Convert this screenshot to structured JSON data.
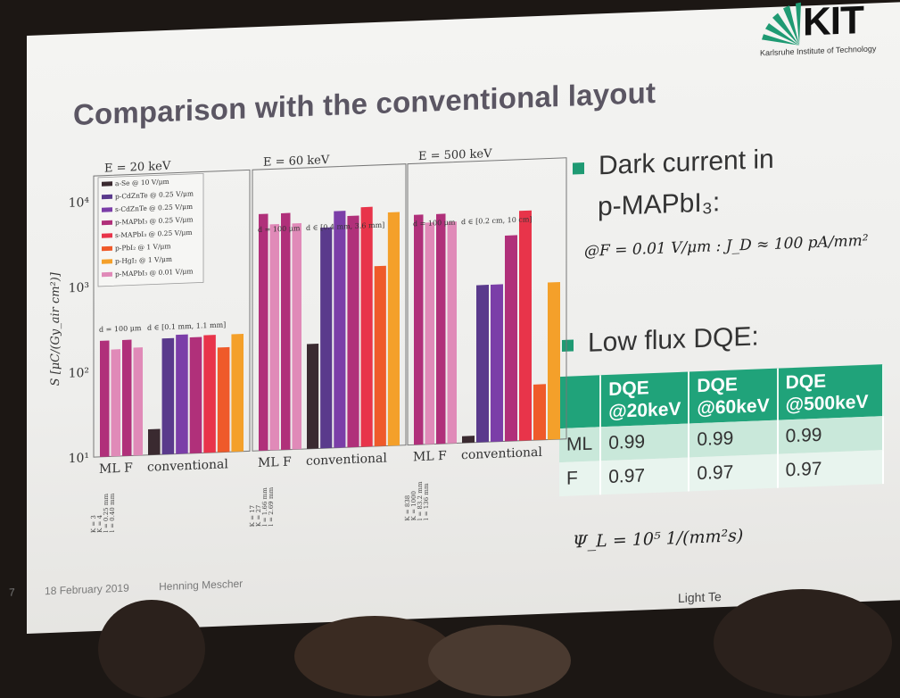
{
  "slide": {
    "title": "Comparison with the conventional layout",
    "logo_text": "KIT",
    "logo_subtitle": "Karlsruhe Institute of Technology",
    "footer_page": "7",
    "footer_date": "18 February 2019",
    "footer_author": "Henning Mescher",
    "footer_right": "Light Te"
  },
  "bullets": {
    "dark_current_line1": "Dark current in",
    "dark_current_line2": "p-MAPbI₃:",
    "dark_current_formula": "@F = 0.01 V/μm : J_D ≈ 100 pA/mm²",
    "low_flux": "Low flux DQE:",
    "flux_formula": "Ψ_L = 10⁵ 1/(mm²s)"
  },
  "dqe_table": {
    "headers": [
      "",
      "DQE @20keV",
      "DQE @60keV",
      "DQE @500keV"
    ],
    "rows": [
      [
        "ML",
        "0.99",
        "0.99",
        "0.99"
      ],
      [
        "F",
        "0.97",
        "0.97",
        "0.97"
      ]
    ]
  },
  "colors": {
    "accent_green": "#20a37a",
    "title_gray": "#5b5663"
  },
  "chart_data": {
    "type": "bar",
    "ylabel": "S [μC/(Gy_air cm²)]",
    "yscale": "log",
    "ylim": [
      10,
      20000
    ],
    "yticks": [
      "10¹",
      "10²",
      "10³",
      "10⁴"
    ],
    "legend": [
      {
        "name": "a-Se @ 10 V/μm",
        "color": "#3a2a30"
      },
      {
        "name": "p-CdZnTe @ 0.25 V/μm",
        "color": "#5a3a8c"
      },
      {
        "name": "s-CdZnTe @ 0.25 V/μm",
        "color": "#7b3ea8"
      },
      {
        "name": "p-MAPbI₃ @ 0.25 V/μm",
        "color": "#b0307a"
      },
      {
        "name": "s-MAPbI₃ @ 0.25 V/μm",
        "color": "#e8344a"
      },
      {
        "name": "p-PbI₂ @ 1 V/μm",
        "color": "#ef5a2a"
      },
      {
        "name": "p-HgI₂ @ 1 V/μm",
        "color": "#f4a02a"
      },
      {
        "name": "p-MAPbI₃ @ 0.01 V/μm",
        "color": "#e08ab8"
      }
    ],
    "panels": [
      {
        "energy": "E = 20 keV",
        "groups": [
          {
            "label": "ML F",
            "range": "d = 100 μm",
            "values": [
              230,
              180,
              230,
              185
            ],
            "colors": [
              "#b0307a",
              "#e08ab8",
              "#b0307a",
              "#e08ab8"
            ]
          },
          {
            "label": "conventional",
            "range": "d ∈ [0.1 mm, 1.1 mm]",
            "values": [
              20,
              230,
              250,
              230,
              240,
              170,
              240
            ],
            "colors": [
              "#3a2a30",
              "#5a3a8c",
              "#7b3ea8",
              "#b0307a",
              "#e8344a",
              "#ef5a2a",
              "#f4a02a"
            ]
          }
        ],
        "notes": [
          "K = 3",
          "K = 4",
          "l = 0.25 mm",
          "l = 0.40 mm"
        ]
      },
      {
        "energy": "E = 60 keV",
        "groups": [
          {
            "label": "ML F",
            "range": "d = 100 μm",
            "values": [
              6000,
              4500,
              6000,
              4500
            ],
            "colors": [
              "#b0307a",
              "#e08ab8",
              "#b0307a",
              "#e08ab8"
            ]
          },
          {
            "label": "conventional",
            "range": "d ∈ [0.4 mm, 3.6 mm]",
            "values": [
              170,
              3900,
              6000,
              5200,
              6500,
              1300,
              5500
            ],
            "colors": [
              "#3a2a30",
              "#5a3a8c",
              "#7b3ea8",
              "#b0307a",
              "#e8344a",
              "#ef5a2a",
              "#f4a02a"
            ]
          }
        ],
        "notes": [
          "K = 17",
          "K = 27",
          "l = 1.66 mm",
          "l = 2.69 mm"
        ]
      },
      {
        "energy": "E = 500 keV",
        "groups": [
          {
            "label": "ML F",
            "range": "d = 100 μm",
            "values": [
              5000,
              4000,
              5000,
              4000
            ],
            "colors": [
              "#b0307a",
              "#e08ab8",
              "#b0307a",
              "#e08ab8"
            ]
          },
          {
            "label": "conventional",
            "range": "d ∈ [0.2 cm, 10 cm]",
            "values": [
              12,
              700,
              700,
              2600,
              5000,
              45,
              700
            ],
            "colors": [
              "#3a2a30",
              "#5a3a8c",
              "#7b3ea8",
              "#b0307a",
              "#e8344a",
              "#ef5a2a",
              "#f4a02a"
            ]
          }
        ],
        "notes": [
          "K = 838",
          "K = 1000",
          "l = 83.2 mm",
          "l = 136 mm"
        ]
      }
    ]
  }
}
